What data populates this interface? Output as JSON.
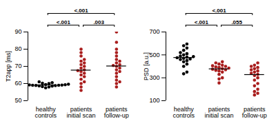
{
  "chart_data": [
    {
      "type": "scatter",
      "ylabel": "T2app [ms]",
      "categories": [
        "healthy\ncontrols",
        "patients\ninitial scan",
        "patients\nfollow-up"
      ],
      "values": [
        [
          57.5,
          58,
          58.2,
          58.5,
          58.6,
          58.8,
          58.9,
          59,
          59,
          59.1,
          59.2,
          59.3,
          59.4,
          59.5,
          59.6,
          59.8,
          60,
          60.2,
          60.5,
          61
        ],
        [
          56,
          58,
          60,
          61,
          62.5,
          64,
          65,
          66,
          67,
          67.5,
          68,
          69,
          70,
          71,
          72,
          73,
          74,
          76,
          78,
          80
        ],
        [
          58,
          60,
          61,
          62,
          64,
          66,
          67,
          68,
          69,
          70,
          70.5,
          71,
          72,
          73,
          74,
          76,
          78,
          80,
          84,
          90
        ]
      ],
      "medians": [
        59.2,
        67.8,
        70.2
      ],
      "colors": [
        "#000000",
        "#a91d1d",
        "#a91d1d"
      ],
      "ylim": [
        50,
        90
      ],
      "yticks": [
        50,
        60,
        70,
        80,
        90
      ],
      "comparisons": [
        {
          "pair": [
            0,
            1
          ],
          "label": "<.001"
        },
        {
          "pair": [
            0,
            2
          ],
          "label": "<.001"
        },
        {
          "pair": [
            1,
            2
          ],
          "label": ".003"
        }
      ]
    },
    {
      "type": "scatter",
      "ylabel": "PSD [a.u.]",
      "categories": [
        "healthy\ncontrols",
        "patients\ninitial scan",
        "patients\nfollow-up"
      ],
      "values": [
        [
          335,
          350,
          400,
          420,
          440,
          450,
          460,
          465,
          470,
          475,
          480,
          485,
          490,
          500,
          510,
          520,
          540,
          560,
          580,
          595
        ],
        [
          255,
          290,
          300,
          330,
          350,
          360,
          365,
          370,
          375,
          380,
          385,
          390,
          395,
          400,
          405,
          410,
          420,
          430,
          440
        ],
        [
          150,
          165,
          180,
          200,
          230,
          250,
          280,
          300,
          320,
          330,
          340,
          350,
          360,
          370,
          380,
          390,
          400,
          410,
          430
        ]
      ],
      "medians": [
        477,
        378,
        328
      ],
      "colors": [
        "#000000",
        "#a91d1d",
        "#a91d1d"
      ],
      "ylim": [
        100,
        700
      ],
      "yticks": [
        100,
        300,
        500,
        700
      ],
      "comparisons": [
        {
          "pair": [
            0,
            1
          ],
          "label": "<.001"
        },
        {
          "pair": [
            0,
            2
          ],
          "label": "<.001"
        },
        {
          "pair": [
            1,
            2
          ],
          "label": ".055"
        }
      ]
    }
  ]
}
